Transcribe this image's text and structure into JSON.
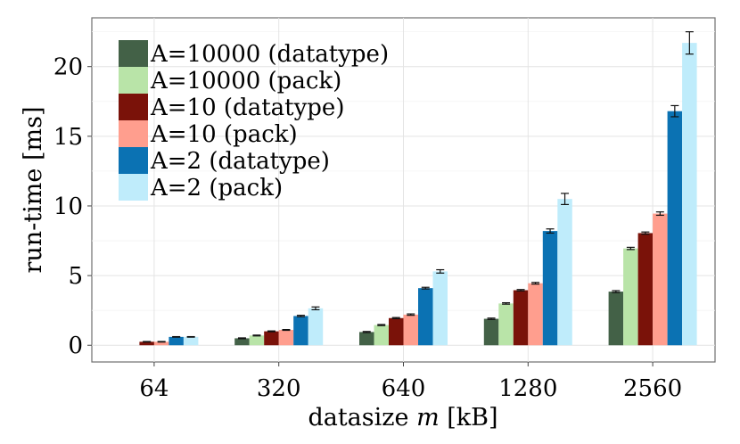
{
  "chart_data": {
    "type": "bar",
    "xlabel_prefix": "datasize ",
    "xlabel_var": "m",
    "xlabel_suffix": " [kB]",
    "ylabel": "run-time [ms]",
    "ylim": [
      -1.2,
      23.5
    ],
    "yticks": [
      0,
      5,
      10,
      15,
      20
    ],
    "grid": true,
    "legend_position": "top-left",
    "categories": [
      "64",
      "320",
      "640",
      "1280",
      "2560"
    ],
    "series": [
      {
        "name": "A=10000 (datatype)",
        "color": "#436147",
        "values": [
          null,
          0.5,
          0.95,
          1.9,
          3.85
        ],
        "errors": [
          0,
          0.03,
          0.04,
          0.05,
          0.07
        ]
      },
      {
        "name": "A=10000 (pack)",
        "color": "#b9e4a8",
        "values": [
          null,
          0.7,
          1.45,
          3.0,
          6.95
        ],
        "errors": [
          0,
          0.03,
          0.04,
          0.05,
          0.08
        ]
      },
      {
        "name": "A=10 (datatype)",
        "color": "#7a1209",
        "values": [
          0.25,
          1.0,
          1.95,
          3.95,
          8.05
        ],
        "errors": [
          0.02,
          0.03,
          0.04,
          0.05,
          0.08
        ]
      },
      {
        "name": "A=10 (pack)",
        "color": "#ff9e8e",
        "values": [
          0.25,
          1.1,
          2.2,
          4.45,
          9.45
        ],
        "errors": [
          0.02,
          0.03,
          0.05,
          0.06,
          0.12
        ]
      },
      {
        "name": "A=2 (datatype)",
        "color": "#0b72b3",
        "values": [
          0.6,
          2.1,
          4.1,
          8.2,
          16.8
        ],
        "errors": [
          0.02,
          0.05,
          0.06,
          0.15,
          0.4
        ]
      },
      {
        "name": "A=2 (pack)",
        "color": "#bfecfb",
        "values": [
          0.6,
          2.65,
          5.3,
          10.5,
          21.7
        ],
        "errors": [
          0.02,
          0.1,
          0.12,
          0.4,
          0.8
        ]
      }
    ]
  }
}
